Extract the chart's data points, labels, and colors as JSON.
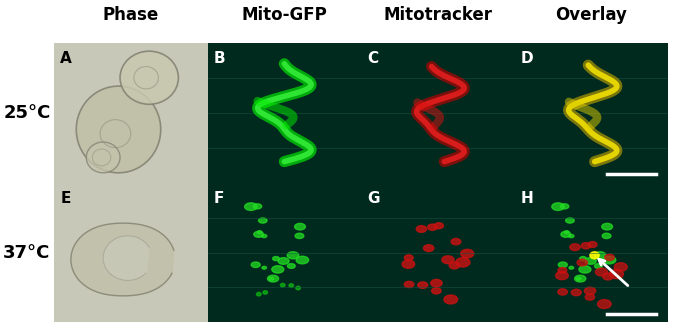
{
  "col_headers": [
    "Phase",
    "Mito-GFP",
    "Mitotracker",
    "Overlay"
  ],
  "row_labels": [
    "25°C",
    "37°C"
  ],
  "panel_labels": [
    "A",
    "B",
    "C",
    "D",
    "E",
    "F",
    "G",
    "H"
  ],
  "panel_bg_colors": [
    [
      "#d8d8c8",
      "#003322",
      "#003322",
      "#003322"
    ],
    [
      "#d8d8c8",
      "#003322",
      "#003322",
      "#003322"
    ]
  ],
  "header_fontsize": 12,
  "label_fontsize": 12,
  "panel_label_fontsize": 11,
  "row_label_fontsize": 13,
  "fig_bg": "#ffffff",
  "header_color": "#000000",
  "row_label_color": "#000000",
  "panel_label_color": "#ffffff",
  "panel_A_bg": "#c8c8b8",
  "panel_E_bg": "#c8c8b8",
  "dark_bg": "#002a1e",
  "scale_bar_color": "#ffffff",
  "arrow_color": "#ffffff"
}
